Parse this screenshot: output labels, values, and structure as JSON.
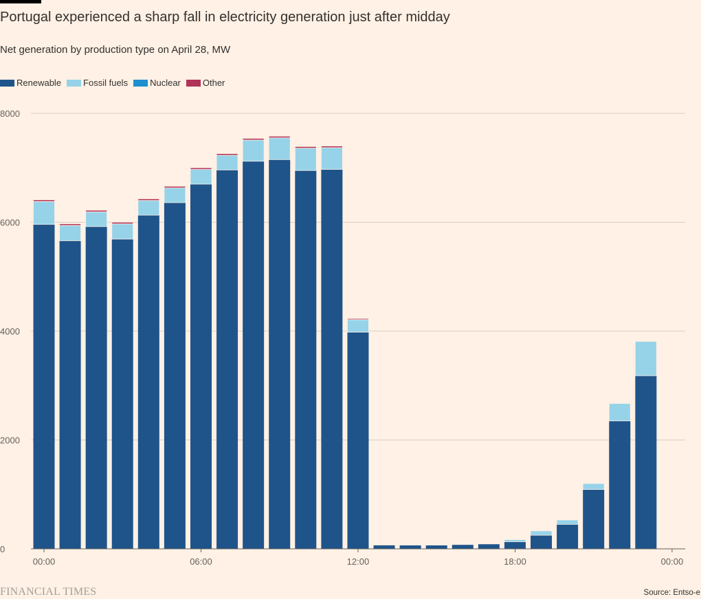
{
  "header": {
    "title": "Portugal experienced a sharp fall in electricity generation just after midday",
    "subtitle": "Net generation by production type on April 28, MW"
  },
  "footer": {
    "brand": "FINANCIAL TIMES",
    "source": "Source: Entso-e"
  },
  "colors": {
    "background": "#FFF1E5",
    "renewable": "#1F548A",
    "fossil": "#96D3E9",
    "nuclear": "#1E8FCF",
    "other": "#B03358",
    "gridline": "#D9CEC3"
  },
  "chart_data": {
    "type": "bar",
    "stacked": true,
    "categories": [
      "00:00",
      "01:00",
      "02:00",
      "03:00",
      "04:00",
      "05:00",
      "06:00",
      "07:00",
      "08:00",
      "09:00",
      "10:00",
      "11:00",
      "12:00",
      "13:00",
      "14:00",
      "15:00",
      "16:00",
      "17:00",
      "18:00",
      "19:00",
      "20:00",
      "21:00",
      "22:00",
      "23:00"
    ],
    "x_tick_labels": [
      "00:00",
      "06:00",
      "12:00",
      "18:00",
      "00:00"
    ],
    "y_ticks": [
      0,
      2000,
      4000,
      6000,
      8000
    ],
    "ylim": [
      0,
      8000
    ],
    "grid": true,
    "legend_position": "top-left",
    "series": [
      {
        "name": "Renewable",
        "color": "#1F548A",
        "values": [
          5960,
          5660,
          5920,
          5690,
          6130,
          6360,
          6700,
          6960,
          7120,
          7150,
          6950,
          6970,
          3980,
          70,
          70,
          70,
          80,
          90,
          130,
          250,
          450,
          1090,
          2350,
          3180
        ]
      },
      {
        "name": "Fossil fuels",
        "color": "#96D3E9",
        "values": [
          420,
          280,
          270,
          280,
          270,
          270,
          270,
          270,
          390,
          400,
          410,
          400,
          230,
          10,
          5,
          5,
          5,
          10,
          40,
          80,
          80,
          110,
          320,
          630
        ]
      },
      {
        "name": "Nuclear",
        "color": "#1E8FCF",
        "values": [
          0,
          0,
          0,
          0,
          0,
          0,
          0,
          0,
          0,
          0,
          0,
          0,
          0,
          0,
          0,
          0,
          0,
          0,
          0,
          0,
          0,
          0,
          0,
          0
        ]
      },
      {
        "name": "Other",
        "color": "#B03358",
        "values": [
          30,
          30,
          30,
          30,
          30,
          30,
          30,
          30,
          30,
          30,
          30,
          30,
          20,
          5,
          0,
          0,
          0,
          5,
          0,
          0,
          0,
          0,
          0,
          0
        ]
      }
    ]
  }
}
